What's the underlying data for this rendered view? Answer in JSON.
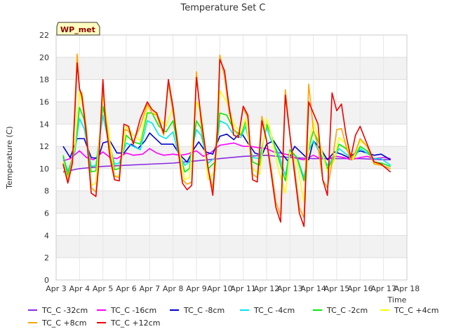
{
  "chart_data": {
    "type": "line",
    "title": "Temperature Set C",
    "xlabel": "Time",
    "ylabel": "Temperature (C)",
    "badge": "WP_met",
    "ylim": [
      0,
      22
    ],
    "yticks": [
      0,
      2,
      4,
      6,
      8,
      10,
      12,
      14,
      16,
      18,
      20,
      22
    ],
    "xlim": [
      3,
      18
    ],
    "xticks": [
      {
        "pos": 3,
        "label": "Apr 3"
      },
      {
        "pos": 4,
        "label": "Apr 4"
      },
      {
        "pos": 5,
        "label": "Apr 5"
      },
      {
        "pos": 6,
        "label": "Apr 6"
      },
      {
        "pos": 7,
        "label": "Apr 7"
      },
      {
        "pos": 8,
        "label": "Apr 8"
      },
      {
        "pos": 9,
        "label": "Apr 9"
      },
      {
        "pos": 10,
        "label": "Apr 10"
      },
      {
        "pos": 11,
        "label": "Apr 11"
      },
      {
        "pos": 12,
        "label": "Apr 12"
      },
      {
        "pos": 13,
        "label": "Apr 13"
      },
      {
        "pos": 14,
        "label": "Apr 14"
      },
      {
        "pos": 15,
        "label": "Apr 15"
      },
      {
        "pos": 16,
        "label": "Apr 16"
      },
      {
        "pos": 17,
        "label": "Apr 17"
      },
      {
        "pos": 18,
        "label": "Apr 18"
      }
    ],
    "grid": true,
    "banded_background": true,
    "legend_position": "bottom",
    "series": [
      {
        "name": "TC_C -32cm",
        "color": "#8a2be2",
        "x": [
          3.3,
          4,
          5,
          6,
          7,
          8,
          9,
          10,
          11,
          12,
          13,
          14,
          15,
          16,
          17,
          17.3
        ],
        "y": [
          9.7,
          10.0,
          10.2,
          10.3,
          10.4,
          10.5,
          10.7,
          10.9,
          11.1,
          11.2,
          11.0,
          10.9,
          10.9,
          10.9,
          10.8,
          10.8
        ]
      },
      {
        "name": "TC_C -16cm",
        "color": "#ff00ff",
        "x": [
          3.3,
          3.6,
          4.0,
          4.3,
          4.6,
          5.0,
          5.3,
          5.6,
          6.0,
          6.3,
          6.7,
          7.0,
          7.3,
          7.6,
          8.0,
          8.3,
          8.6,
          9.0,
          9.3,
          9.6,
          10.0,
          10.3,
          10.6,
          11.0,
          11.3,
          11.6,
          12.0,
          12.3,
          12.6,
          13.0,
          13.3,
          13.6,
          14.0,
          14.3,
          14.6,
          15.0,
          15.3,
          15.6,
          16.0,
          16.3,
          16.6,
          17.0,
          17.3
        ],
        "y": [
          10.7,
          10.9,
          11.6,
          11.0,
          10.8,
          11.5,
          11.0,
          10.9,
          11.4,
          11.2,
          11.3,
          11.8,
          11.4,
          11.2,
          11.3,
          11.2,
          11.3,
          11.6,
          11.1,
          11.4,
          12.1,
          12.2,
          12.3,
          12.0,
          12.0,
          11.9,
          11.8,
          11.5,
          11.4,
          11.2,
          10.9,
          10.8,
          11.2,
          10.9,
          10.9,
          11.1,
          11.0,
          10.8,
          11.0,
          11.1,
          10.9,
          11.0,
          10.9
        ]
      },
      {
        "name": "TC_C -8cm",
        "color": "#0000cd",
        "x": [
          3.3,
          3.6,
          3.9,
          4.2,
          4.5,
          4.8,
          5.0,
          5.3,
          5.6,
          5.9,
          6.2,
          6.5,
          6.8,
          7.0,
          7.2,
          7.5,
          7.8,
          8.0,
          8.3,
          8.6,
          8.9,
          9.1,
          9.4,
          9.7,
          10.0,
          10.3,
          10.6,
          10.9,
          11.2,
          11.5,
          11.8,
          12.0,
          12.3,
          12.6,
          12.9,
          13.2,
          13.5,
          13.8,
          14.0,
          14.3,
          14.6,
          14.9,
          15.2,
          15.5,
          15.8,
          16.0,
          16.3,
          16.6,
          16.9,
          17.3
        ],
        "y": [
          12.0,
          11.0,
          12.7,
          12.7,
          11.0,
          10.9,
          12.3,
          12.5,
          11.4,
          11.4,
          12.2,
          11.8,
          12.5,
          13.2,
          12.8,
          12.2,
          12.2,
          12.2,
          11.2,
          10.6,
          11.8,
          12.4,
          11.5,
          11.3,
          12.9,
          13.1,
          12.6,
          13.3,
          12.3,
          11.4,
          11.2,
          12.2,
          12.5,
          11.5,
          10.7,
          12.0,
          11.4,
          10.8,
          12.5,
          11.8,
          10.8,
          11.5,
          11.3,
          11.0,
          11.4,
          11.6,
          11.4,
          11.2,
          11.3,
          10.8
        ]
      },
      {
        "name": "TC_C -4cm",
        "color": "#00e5ee",
        "x": [
          3.3,
          3.5,
          3.8,
          4.0,
          4.2,
          4.5,
          4.7,
          5.0,
          5.2,
          5.5,
          5.7,
          6.0,
          6.3,
          6.6,
          6.9,
          7.1,
          7.4,
          7.7,
          8.0,
          8.2,
          8.5,
          8.7,
          9.0,
          9.2,
          9.5,
          9.8,
          10.0,
          10.3,
          10.6,
          10.9,
          11.1,
          11.4,
          11.7,
          12.0,
          12.2,
          12.5,
          12.8,
          13.0,
          13.3,
          13.6,
          13.8,
          14.0,
          14.3,
          14.6,
          14.9,
          15.1,
          15.4,
          15.7,
          16.0,
          16.3,
          16.6,
          16.9,
          17.3
        ],
        "y": [
          11.0,
          9.8,
          11.5,
          14.5,
          13.6,
          10.2,
          10.3,
          14.8,
          12.8,
          10.4,
          10.5,
          12.3,
          12.0,
          11.7,
          14.3,
          14.1,
          13.0,
          12.7,
          13.3,
          11.5,
          10.3,
          10.6,
          13.5,
          13.0,
          10.5,
          11.0,
          14.3,
          14.0,
          13.0,
          12.8,
          13.8,
          11.0,
          10.9,
          13.7,
          12.5,
          11.4,
          9.4,
          11.6,
          11.0,
          9.2,
          11.6,
          12.5,
          11.3,
          10.3,
          11.1,
          11.8,
          11.3,
          10.9,
          11.8,
          11.4,
          10.9,
          10.9,
          10.3
        ]
      },
      {
        "name": "TC_C -2cm",
        "color": "#00ee00",
        "x": [
          3.3,
          3.5,
          3.8,
          4.0,
          4.2,
          4.5,
          4.7,
          5.0,
          5.2,
          5.5,
          5.7,
          6.0,
          6.3,
          6.6,
          6.9,
          7.1,
          7.4,
          7.7,
          8.0,
          8.2,
          8.5,
          8.7,
          9.0,
          9.2,
          9.5,
          9.8,
          10.0,
          10.3,
          10.6,
          10.9,
          11.1,
          11.4,
          11.7,
          12.0,
          12.2,
          12.5,
          12.8,
          13.0,
          13.3,
          13.6,
          13.8,
          14.0,
          14.3,
          14.6,
          14.9,
          15.1,
          15.4,
          15.7,
          16.0,
          16.3,
          16.6,
          16.9,
          17.3
        ],
        "y": [
          11.2,
          9.4,
          11.8,
          15.5,
          14.4,
          9.7,
          9.8,
          15.6,
          13.4,
          9.9,
          10.0,
          13.0,
          12.4,
          12.2,
          15.0,
          15.0,
          13.8,
          13.3,
          14.3,
          12.0,
          9.7,
          10.0,
          14.3,
          13.6,
          10.0,
          10.6,
          15.0,
          14.8,
          13.5,
          13.0,
          14.2,
          10.6,
          10.3,
          14.0,
          13.0,
          11.0,
          8.9,
          11.7,
          11.0,
          8.9,
          11.8,
          13.4,
          12.0,
          10.0,
          11.0,
          12.2,
          11.8,
          10.8,
          12.0,
          11.6,
          10.6,
          10.5,
          10.2
        ]
      },
      {
        "name": "TC_C +4cm",
        "color": "#ffff00",
        "x": [
          3.3,
          3.5,
          3.8,
          4.0,
          4.2,
          4.5,
          4.7,
          5.0,
          5.2,
          5.5,
          5.7,
          6.0,
          6.3,
          6.6,
          6.9,
          7.1,
          7.4,
          7.7,
          8.0,
          8.2,
          8.5,
          8.7,
          9.0,
          9.2,
          9.5,
          9.8,
          10.0,
          10.3,
          10.6,
          10.9,
          11.1,
          11.4,
          11.7,
          12.0,
          12.2,
          12.5,
          12.8,
          13.0,
          13.3,
          13.6,
          13.8,
          14.0,
          14.3,
          14.6,
          14.9,
          15.1,
          15.4,
          15.7,
          16.0,
          16.3,
          16.6,
          16.9,
          17.3
        ],
        "y": [
          10.6,
          9.0,
          12.0,
          17.0,
          15.0,
          8.5,
          8.7,
          16.5,
          14.0,
          9.3,
          9.4,
          13.8,
          13.0,
          12.5,
          15.5,
          15.4,
          14.5,
          13.8,
          15.5,
          12.5,
          9.0,
          9.2,
          16.0,
          15.0,
          9.0,
          9.8,
          17.0,
          16.0,
          14.0,
          13.2,
          14.5,
          10.0,
          9.5,
          14.5,
          13.0,
          10.0,
          7.8,
          11.5,
          10.5,
          7.0,
          12.0,
          14.3,
          12.0,
          9.7,
          10.8,
          12.8,
          12.2,
          10.8,
          12.5,
          12.0,
          10.5,
          10.3,
          10.0
        ]
      },
      {
        "name": "TC_C +8cm",
        "color": "#ffa500",
        "x": [
          3.3,
          3.5,
          3.7,
          3.9,
          4.0,
          4.1,
          4.3,
          4.5,
          4.7,
          4.8,
          5.0,
          5.1,
          5.3,
          5.5,
          5.7,
          5.9,
          6.1,
          6.3,
          6.6,
          6.9,
          7.1,
          7.3,
          7.6,
          7.8,
          8.0,
          8.2,
          8.4,
          8.6,
          8.8,
          9.0,
          9.2,
          9.5,
          9.7,
          9.9,
          10.0,
          10.2,
          10.4,
          10.6,
          10.8,
          11.0,
          11.2,
          11.4,
          11.6,
          11.8,
          12.0,
          12.2,
          12.4,
          12.6,
          12.8,
          13.0,
          13.2,
          13.4,
          13.6,
          13.8,
          14.0,
          14.2,
          14.4,
          14.6,
          14.8,
          15.0,
          15.2,
          15.4,
          15.6,
          15.8,
          16.0,
          16.3,
          16.6,
          16.9,
          17.3
        ],
        "y": [
          10.5,
          8.9,
          11.0,
          20.3,
          17.0,
          16.8,
          13.5,
          8.3,
          7.9,
          10.0,
          17.5,
          15.0,
          11.5,
          9.3,
          9.2,
          13.5,
          13.4,
          12.4,
          13.8,
          15.8,
          15.0,
          14.8,
          13.0,
          17.7,
          15.0,
          12.5,
          9.0,
          8.6,
          8.8,
          18.7,
          14.0,
          10.0,
          8.2,
          14.0,
          20.2,
          18.3,
          15.0,
          13.5,
          13.0,
          15.5,
          14.5,
          9.5,
          9.2,
          14.7,
          12.5,
          10.0,
          7.0,
          5.8,
          17.1,
          13.0,
          10.0,
          6.5,
          5.6,
          17.6,
          13.5,
          12.0,
          9.0,
          8.3,
          10.5,
          13.5,
          13.6,
          12.0,
          10.8,
          11.5,
          12.7,
          12.0,
          10.4,
          10.3,
          10.0
        ]
      },
      {
        "name": "TC_C +12cm",
        "color": "#ee0000",
        "x": [
          3.3,
          3.5,
          3.7,
          3.9,
          4.0,
          4.1,
          4.3,
          4.5,
          4.7,
          4.8,
          5.0,
          5.1,
          5.3,
          5.5,
          5.7,
          5.9,
          6.1,
          6.3,
          6.6,
          6.9,
          7.1,
          7.3,
          7.6,
          7.8,
          8.0,
          8.2,
          8.4,
          8.6,
          8.8,
          9.0,
          9.2,
          9.5,
          9.7,
          9.9,
          10.0,
          10.2,
          10.4,
          10.6,
          10.8,
          11.0,
          11.2,
          11.4,
          11.6,
          11.8,
          12.0,
          12.2,
          12.4,
          12.6,
          12.8,
          13.0,
          13.2,
          13.4,
          13.6,
          13.8,
          14.0,
          14.2,
          14.4,
          14.6,
          14.8,
          15.0,
          15.2,
          15.4,
          15.6,
          15.8,
          16.0,
          16.3,
          16.6,
          16.9,
          17.3
        ],
        "y": [
          10.4,
          8.7,
          10.5,
          19.5,
          17.2,
          16.5,
          13.0,
          7.8,
          7.5,
          9.8,
          18.0,
          14.5,
          11.0,
          9.0,
          8.9,
          14.0,
          13.8,
          12.2,
          14.5,
          16.0,
          15.3,
          15.0,
          13.2,
          18.0,
          15.5,
          12.0,
          8.7,
          8.1,
          8.5,
          18.2,
          14.5,
          10.0,
          7.6,
          13.5,
          19.8,
          18.8,
          15.5,
          13.0,
          12.8,
          15.6,
          14.8,
          9.0,
          8.8,
          14.3,
          12.5,
          9.5,
          6.5,
          5.2,
          16.6,
          13.0,
          9.5,
          6.0,
          4.8,
          16.0,
          15.0,
          14.0,
          9.0,
          7.6,
          16.8,
          15.2,
          15.8,
          13.0,
          11.0,
          13.0,
          13.8,
          12.2,
          10.6,
          10.4,
          9.7
        ]
      }
    ]
  }
}
